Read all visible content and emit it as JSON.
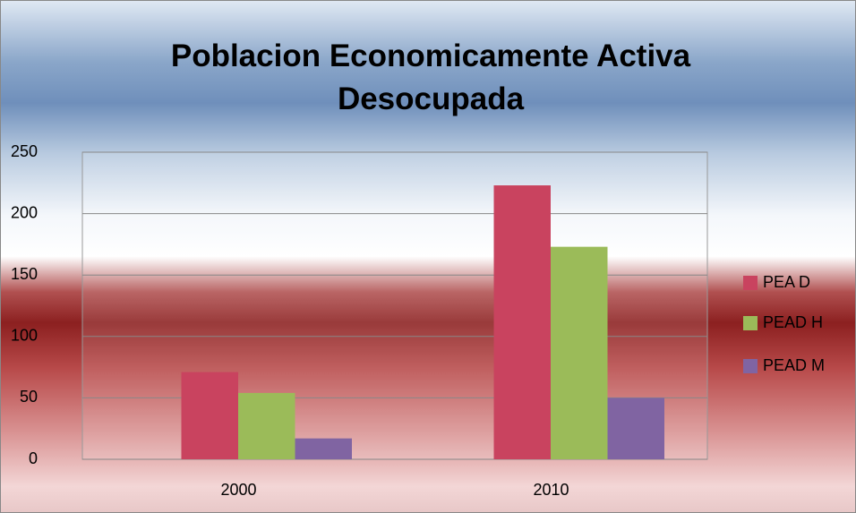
{
  "chart_data": {
    "type": "bar",
    "title": "Poblacion Economicamente Activa Desocupada",
    "categories": [
      "2000",
      "2010"
    ],
    "series": [
      {
        "name": "PEA D",
        "color": "#c9435f",
        "values": [
          71,
          223
        ]
      },
      {
        "name": "PEAD H",
        "color": "#9bbb59",
        "values": [
          54,
          173
        ]
      },
      {
        "name": "PEAD M",
        "color": "#8064a2",
        "values": [
          17,
          50
        ]
      }
    ],
    "ylim": [
      0,
      250
    ],
    "yticks": [
      0,
      50,
      100,
      150,
      200,
      250
    ],
    "grid": true,
    "legend": "right"
  }
}
